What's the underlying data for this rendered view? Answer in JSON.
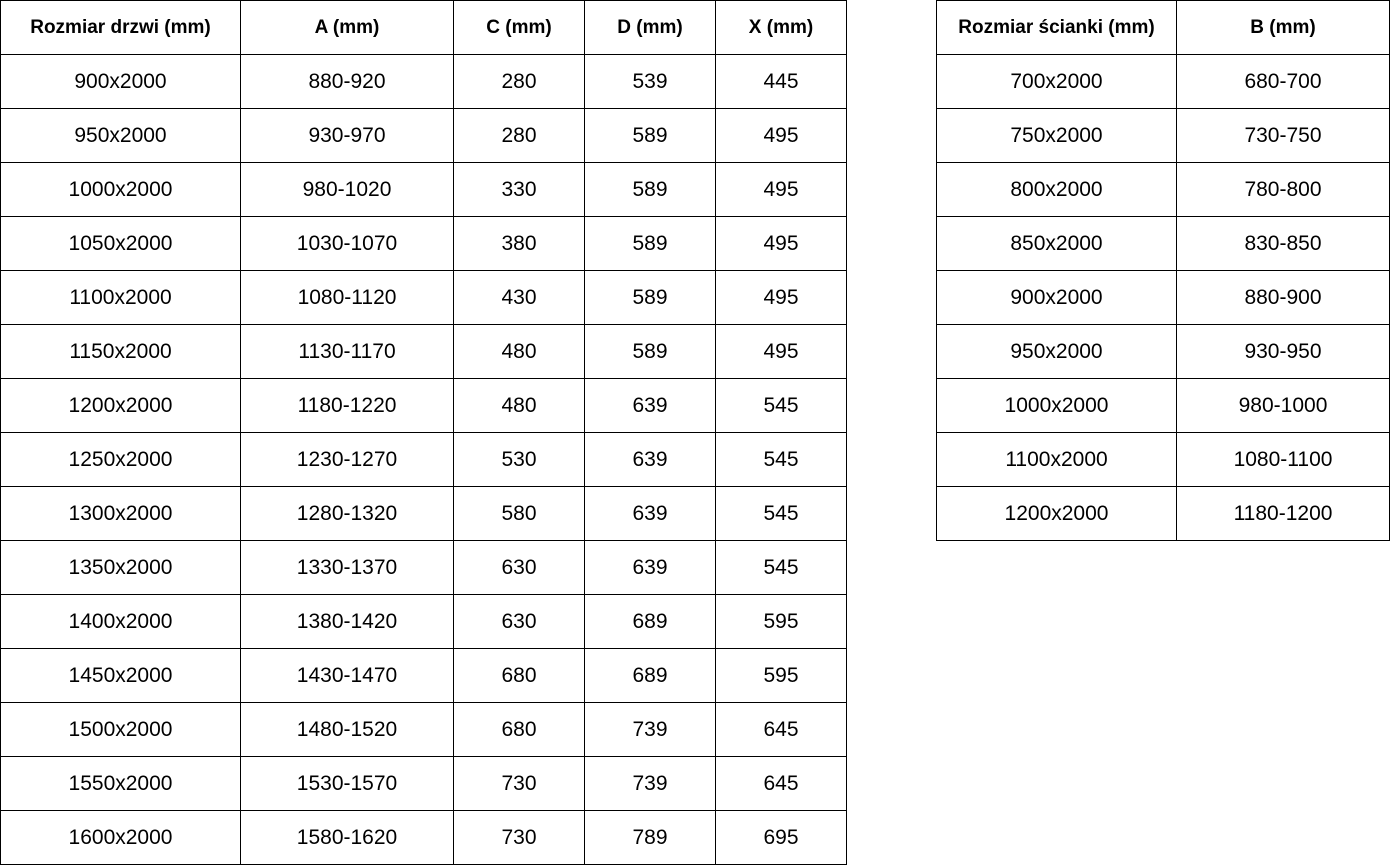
{
  "doors_table": {
    "headers": [
      "Rozmiar drzwi (mm)",
      "A (mm)",
      "C (mm)",
      "D (mm)",
      "X (mm)"
    ],
    "rows": [
      [
        "900x2000",
        "880-920",
        "280",
        "539",
        "445"
      ],
      [
        "950x2000",
        "930-970",
        "280",
        "589",
        "495"
      ],
      [
        "1000x2000",
        "980-1020",
        "330",
        "589",
        "495"
      ],
      [
        "1050x2000",
        "1030-1070",
        "380",
        "589",
        "495"
      ],
      [
        "1100x2000",
        "1080-1120",
        "430",
        "589",
        "495"
      ],
      [
        "1150x2000",
        "1130-1170",
        "480",
        "589",
        "495"
      ],
      [
        "1200x2000",
        "1180-1220",
        "480",
        "639",
        "545"
      ],
      [
        "1250x2000",
        "1230-1270",
        "530",
        "639",
        "545"
      ],
      [
        "1300x2000",
        "1280-1320",
        "580",
        "639",
        "545"
      ],
      [
        "1350x2000",
        "1330-1370",
        "630",
        "639",
        "545"
      ],
      [
        "1400x2000",
        "1380-1420",
        "630",
        "689",
        "595"
      ],
      [
        "1450x2000",
        "1430-1470",
        "680",
        "689",
        "595"
      ],
      [
        "1500x2000",
        "1480-1520",
        "680",
        "739",
        "645"
      ],
      [
        "1550x2000",
        "1530-1570",
        "730",
        "739",
        "645"
      ],
      [
        "1600x2000",
        "1580-1620",
        "730",
        "789",
        "695"
      ]
    ]
  },
  "walls_table": {
    "headers": [
      "Rozmiar ścianki (mm)",
      "B (mm)"
    ],
    "rows": [
      [
        "700x2000",
        "680-700"
      ],
      [
        "750x2000",
        "730-750"
      ],
      [
        "800x2000",
        "780-800"
      ],
      [
        "850x2000",
        "830-850"
      ],
      [
        "900x2000",
        "880-900"
      ],
      [
        "950x2000",
        "930-950"
      ],
      [
        "1000x2000",
        "980-1000"
      ],
      [
        "1100x2000",
        "1080-1100"
      ],
      [
        "1200x2000",
        "1180-1200"
      ]
    ]
  }
}
